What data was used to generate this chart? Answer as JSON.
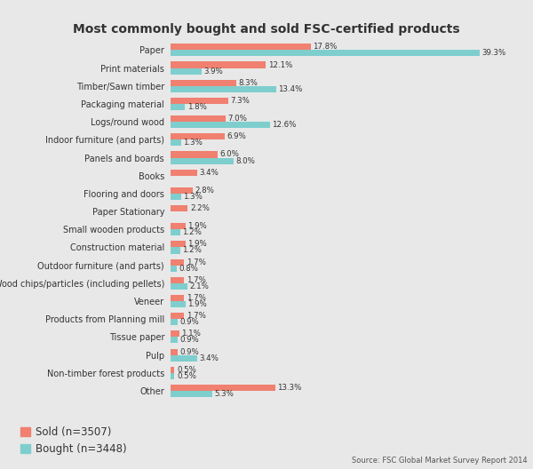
{
  "title": "Most commonly bought and sold FSC-certified products",
  "categories": [
    "Other",
    "Non-timber forest products",
    "Pulp",
    "Tissue paper",
    "Products from Planning mill",
    "Veneer",
    "Wood chips/particles (including pellets)",
    "Outdoor furniture (and parts)",
    "Construction material",
    "Small wooden products",
    "Paper Stationary",
    "Flooring and doors",
    "Books",
    "Panels and boards",
    "Indoor furniture (and parts)",
    "Logs/round wood",
    "Packaging material",
    "Timber/Sawn timber",
    "Print materials",
    "Paper"
  ],
  "sold": [
    13.3,
    0.5,
    0.9,
    1.1,
    1.7,
    1.7,
    1.7,
    1.7,
    1.9,
    1.9,
    2.2,
    2.8,
    3.4,
    6.0,
    6.9,
    7.0,
    7.3,
    8.3,
    12.1,
    17.8
  ],
  "bought": [
    5.3,
    0.5,
    3.4,
    0.9,
    0.9,
    1.9,
    2.1,
    0.8,
    1.2,
    1.2,
    0.0,
    1.3,
    0.0,
    8.0,
    1.3,
    12.6,
    1.8,
    13.4,
    3.9,
    39.3
  ],
  "sold_color": "#F08070",
  "bought_color": "#7ECECE",
  "background_color": "#E8E8E8",
  "source_text": "Source: FSC Global Market Survey Report 2014",
  "legend_sold": "Sold (n=3507)",
  "legend_bought": "Bought (n=3448)",
  "bar_height": 0.35,
  "xlim": [
    0,
    42
  ]
}
